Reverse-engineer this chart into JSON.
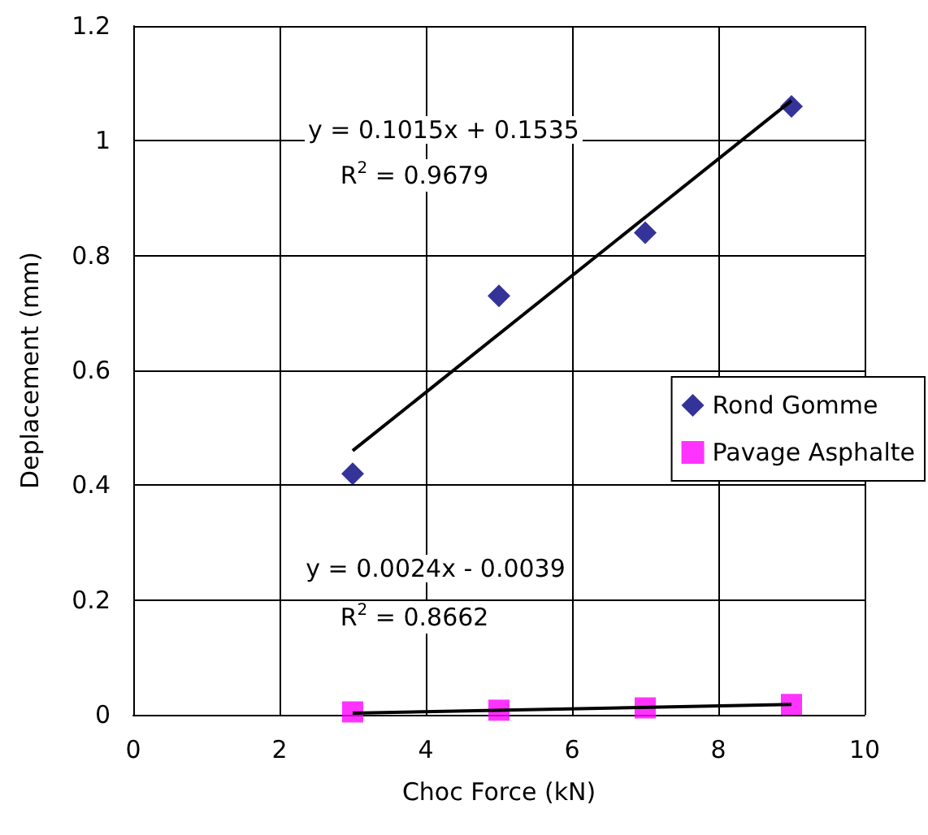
{
  "chart_data": {
    "type": "scatter",
    "xlabel": "Choc Force (kN)",
    "ylabel": "Deplacement (mm)",
    "series": [
      {
        "name": "Rond Gomme",
        "color": "#000080",
        "marker": "diamond",
        "x": [
          3,
          5,
          7,
          9
        ],
        "values": [
          0.42,
          0.73,
          0.84,
          1.06
        ]
      },
      {
        "name": "Pavage Asphalte",
        "color": "#ff00ff",
        "marker": "square",
        "x": [
          3,
          5,
          7,
          9
        ],
        "values": [
          0.005,
          0.008,
          0.012,
          0.018
        ]
      },
      {
        "type": "line",
        "color": "#000000",
        "x": [
          3,
          9
        ],
        "values": [
          0.46,
          1.07
        ]
      },
      {
        "type": "line",
        "color": "#000000",
        "x": [
          3,
          9
        ],
        "values": [
          0.003,
          0.018
        ]
      }
    ],
    "xlim": [
      0,
      10
    ],
    "xticks": [
      0,
      2,
      4,
      6,
      8,
      10
    ],
    "ylim": [
      0,
      1.2
    ],
    "yticks": [
      0,
      0.2,
      0.4,
      0.6,
      0.8,
      1,
      1.2
    ],
    "grid": true,
    "legend": "right",
    "annotations": [
      "y = 0.1015x + 0.1535",
      "R$^{2}$ = 0.9679",
      "y = 0.0024x - 0.0039",
      "R$^{2}$ = 0.8662"
    ]
  }
}
